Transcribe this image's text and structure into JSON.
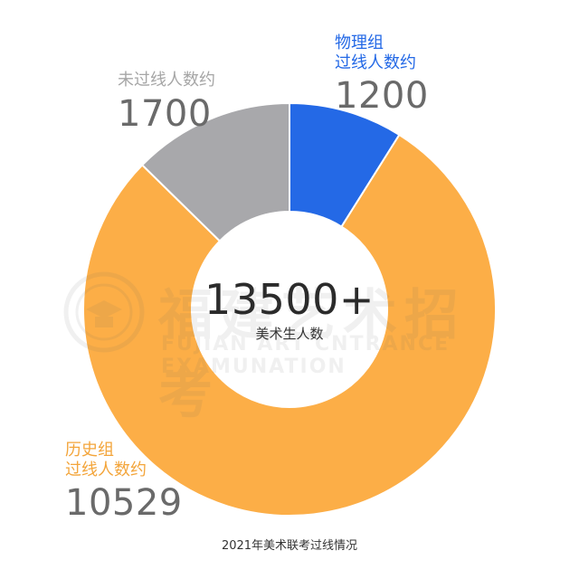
{
  "watermark": {
    "title": "福建艺术招考",
    "subtitle": "FUJIAN ART CNTRANCE EXAMUNATION"
  },
  "center": {
    "total": "13500+",
    "subtitle": "美术生人数"
  },
  "footer": {
    "caption": "2021年美术联考过线情况"
  },
  "labels": {
    "physics": {
      "line1": "物理组",
      "line2": "过线人数约",
      "value": "1200"
    },
    "fail": {
      "line1": "未过线人数约",
      "value": "1700"
    },
    "history": {
      "line1": "历史组",
      "line2": "过线人数约",
      "value": "10529"
    }
  },
  "chart_data": {
    "type": "pie",
    "donut": true,
    "title": "2021年美术联考过线情况",
    "total_label": "13500+",
    "slices": [
      {
        "name": "物理组过线人数约",
        "value": 1200,
        "color": "#2469e6"
      },
      {
        "name": "历史组过线人数约",
        "value": 10529,
        "color": "#fcae47"
      },
      {
        "name": "未过线人数约",
        "value": 1700,
        "color": "#a8a8ab"
      }
    ]
  }
}
